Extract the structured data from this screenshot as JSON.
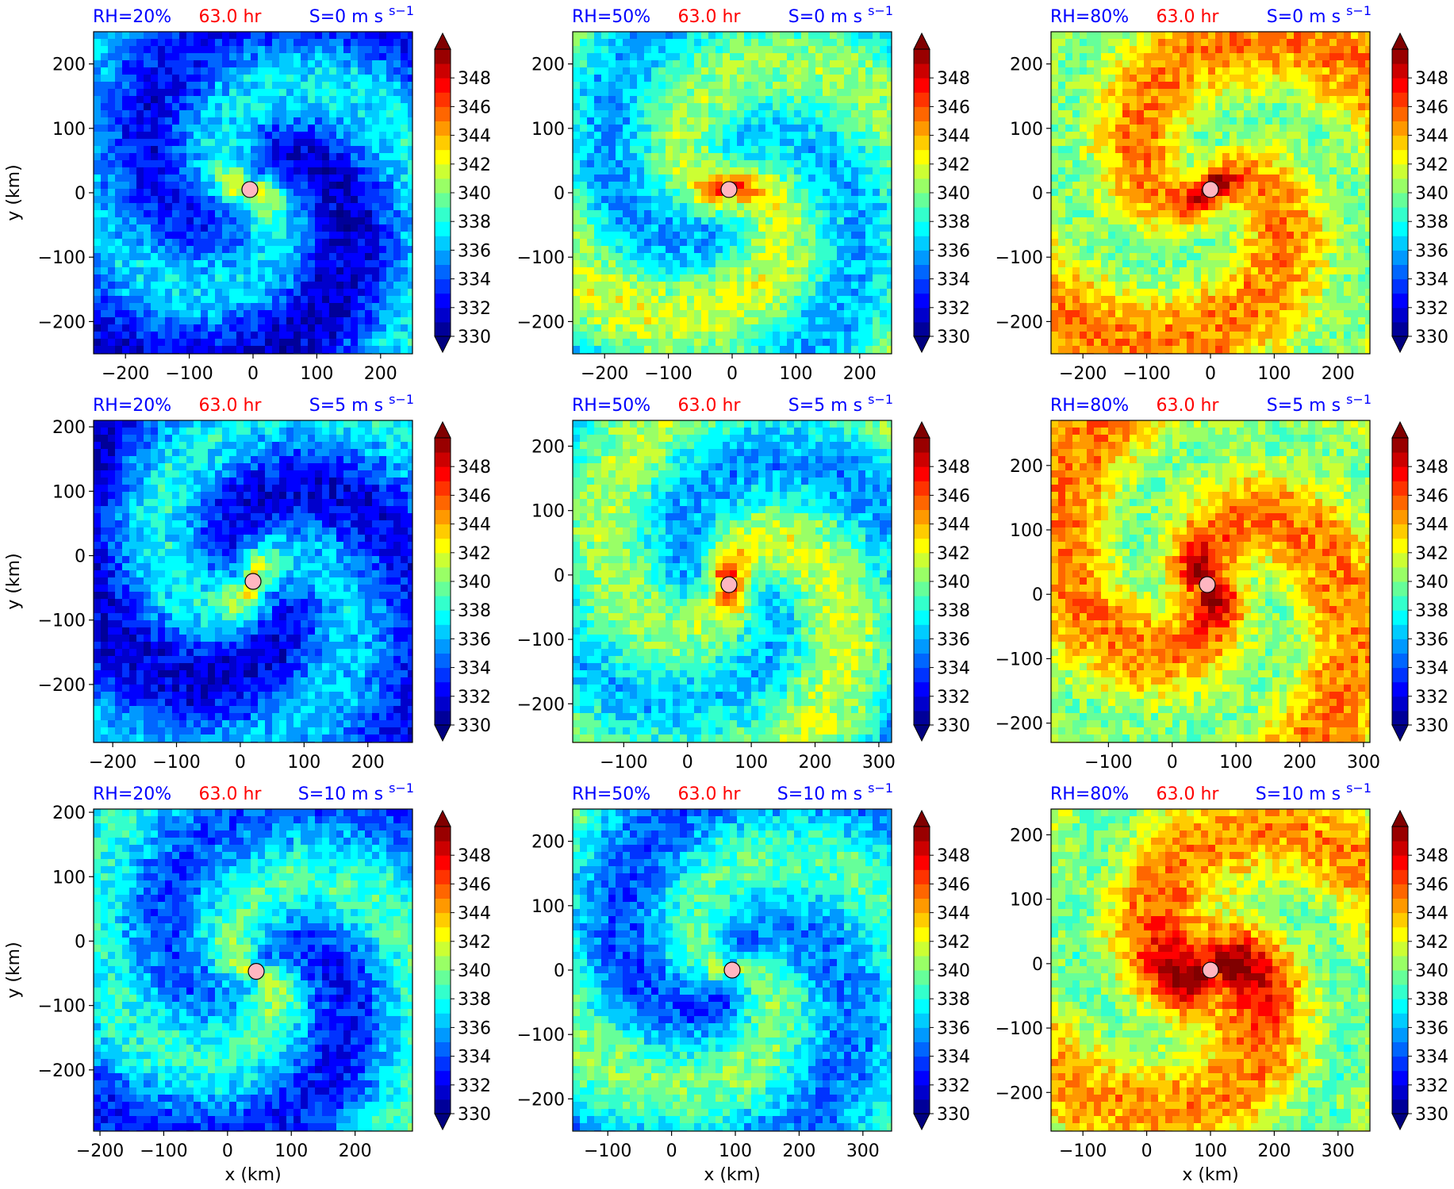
{
  "colors": {
    "title_blue": "#0000ff",
    "title_red": "#ff0000",
    "center_marker_fill": "#ffb6c1",
    "colormap": "jet"
  },
  "chart_data": {
    "type": "heatmap",
    "grid": "3x3 small multiples",
    "time_label": "63.0 hr",
    "x_axis_label": "x (km)",
    "y_axis_label": "y (km)",
    "colorbar": {
      "min": 330,
      "max": 350,
      "step": 1,
      "extend": "both",
      "tick_labels": [
        "330",
        "332",
        "334",
        "336",
        "338",
        "340",
        "342",
        "344",
        "346",
        "348"
      ]
    },
    "panels": [
      {
        "rh": "RH=20%",
        "shear": "S=0 m s",
        "sup": "−1",
        "xlim": [
          -250,
          250
        ],
        "ylim": [
          -250,
          250
        ],
        "xticks": [
          "−200",
          "−100",
          "0",
          "100",
          "200"
        ],
        "yticks": [
          "−200",
          "−100",
          "0",
          "100",
          "200"
        ],
        "center": [
          -5,
          5
        ],
        "base": 334.5,
        "core": 341,
        "core_radius": 35,
        "dark_band": -1
      },
      {
        "rh": "RH=50%",
        "shear": "S=0 m s",
        "sup": "−1",
        "xlim": [
          -250,
          250
        ],
        "ylim": [
          -250,
          250
        ],
        "xticks": [
          "−200",
          "−100",
          "0",
          "100",
          "200"
        ],
        "yticks": [
          "−200",
          "−100",
          "0",
          "100",
          "200"
        ],
        "center": [
          -5,
          5
        ],
        "base": 338.5,
        "core": 346,
        "core_radius": 30,
        "dark_band": 1
      },
      {
        "rh": "RH=80%",
        "shear": "S=0 m s",
        "sup": "−1",
        "xlim": [
          -250,
          250
        ],
        "ylim": [
          -250,
          250
        ],
        "xticks": [
          "−200",
          "−100",
          "0",
          "100",
          "200"
        ],
        "yticks": [
          "−200",
          "−100",
          "0",
          "100",
          "200"
        ],
        "center": [
          0,
          5
        ],
        "base": 342.5,
        "core": 349,
        "core_radius": 25,
        "dark_band": 0
      },
      {
        "rh": "RH=20%",
        "shear": "S=5 m s",
        "sup": "−1",
        "xlim": [
          -230,
          270
        ],
        "ylim": [
          -290,
          210
        ],
        "xticks": [
          "−200",
          "−100",
          "0",
          "100",
          "200"
        ],
        "yticks": [
          "−200",
          "−100",
          "0",
          "100",
          "200"
        ],
        "center": [
          20,
          -40
        ],
        "base": 334.5,
        "core": 341,
        "core_radius": 35,
        "dark_band": -1
      },
      {
        "rh": "RH=50%",
        "shear": "S=5 m s",
        "sup": "−1",
        "xlim": [
          -180,
          320
        ],
        "ylim": [
          -260,
          240
        ],
        "xticks": [
          "−100",
          "0",
          "100",
          "200",
          "300"
        ],
        "yticks": [
          "−200",
          "−100",
          "0",
          "100",
          "200"
        ],
        "center": [
          65,
          -15
        ],
        "base": 338.5,
        "core": 346,
        "core_radius": 30,
        "dark_band": 1
      },
      {
        "rh": "RH=80%",
        "shear": "S=5 m s",
        "sup": "−1",
        "xlim": [
          -190,
          310
        ],
        "ylim": [
          -230,
          270
        ],
        "xticks": [
          "−100",
          "0",
          "100",
          "200",
          "300"
        ],
        "yticks": [
          "−200",
          "−100",
          "0",
          "100",
          "200"
        ],
        "center": [
          55,
          15
        ],
        "base": 342.5,
        "core": 349,
        "core_radius": 40,
        "dark_band": 0
      },
      {
        "rh": "RH=20%",
        "shear": "S=10 m s",
        "sup": "−1",
        "xlim": [
          -210,
          290
        ],
        "ylim": [
          -295,
          205
        ],
        "xticks": [
          "−200",
          "−100",
          "0",
          "100",
          "200"
        ],
        "yticks": [
          "−200",
          "−100",
          "0",
          "100",
          "200"
        ],
        "center": [
          45,
          -47
        ],
        "base": 336,
        "core": 339,
        "core_radius": 50,
        "dark_band": -1
      },
      {
        "rh": "RH=50%",
        "shear": "S=10 m s",
        "sup": "−1",
        "xlim": [
          -155,
          345
        ],
        "ylim": [
          -250,
          250
        ],
        "xticks": [
          "−100",
          "0",
          "100",
          "200",
          "300"
        ],
        "yticks": [
          "−200",
          "−100",
          "0",
          "100",
          "200"
        ],
        "center": [
          95,
          0
        ],
        "base": 337,
        "core": 339,
        "core_radius": 20,
        "dark_band": 1
      },
      {
        "rh": "RH=80%",
        "shear": "S=10 m s",
        "sup": "−1",
        "xlim": [
          -150,
          350
        ],
        "ylim": [
          -260,
          240
        ],
        "xticks": [
          "−100",
          "0",
          "100",
          "200",
          "300"
        ],
        "yticks": [
          "−200",
          "−100",
          "0",
          "100",
          "200"
        ],
        "center": [
          100,
          -10
        ],
        "base": 342,
        "core": 349,
        "core_radius": 70,
        "dark_band": 0
      }
    ]
  }
}
